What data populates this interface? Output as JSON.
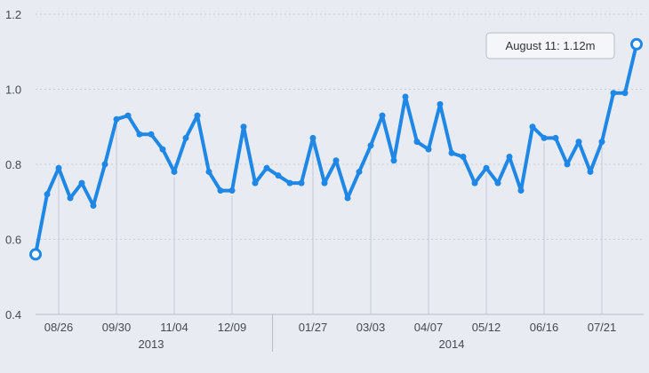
{
  "chart_data": {
    "type": "line",
    "title": "",
    "xlabel": "",
    "ylabel": "",
    "ylim": [
      0.4,
      1.2
    ],
    "yticks": [
      "0.4",
      "0.6",
      "0.8",
      "1.0",
      "1.2"
    ],
    "x_ticks": [
      "08/26",
      "09/30",
      "11/04",
      "12/09",
      "01/27",
      "03/03",
      "04/07",
      "05/12",
      "06/16",
      "07/21"
    ],
    "years": [
      "2013",
      "2014"
    ],
    "grid": true,
    "tooltip": "August 11: 1.12m",
    "series": [
      {
        "values": [
          0.56,
          0.72,
          0.79,
          0.71,
          0.75,
          0.69,
          0.8,
          0.92,
          0.93,
          0.88,
          0.88,
          0.84,
          0.78,
          0.87,
          0.93,
          0.78,
          0.73,
          0.73,
          0.9,
          0.75,
          0.79,
          0.77,
          0.75,
          0.75,
          0.87,
          0.75,
          0.81,
          0.71,
          0.78,
          0.85,
          0.93,
          0.81,
          0.98,
          0.86,
          0.84,
          0.96,
          0.83,
          0.82,
          0.75,
          0.79,
          0.75,
          0.82,
          0.73,
          0.9,
          0.87,
          0.87,
          0.8,
          0.86,
          0.78,
          0.86,
          0.99,
          0.99,
          1.12
        ]
      }
    ]
  }
}
